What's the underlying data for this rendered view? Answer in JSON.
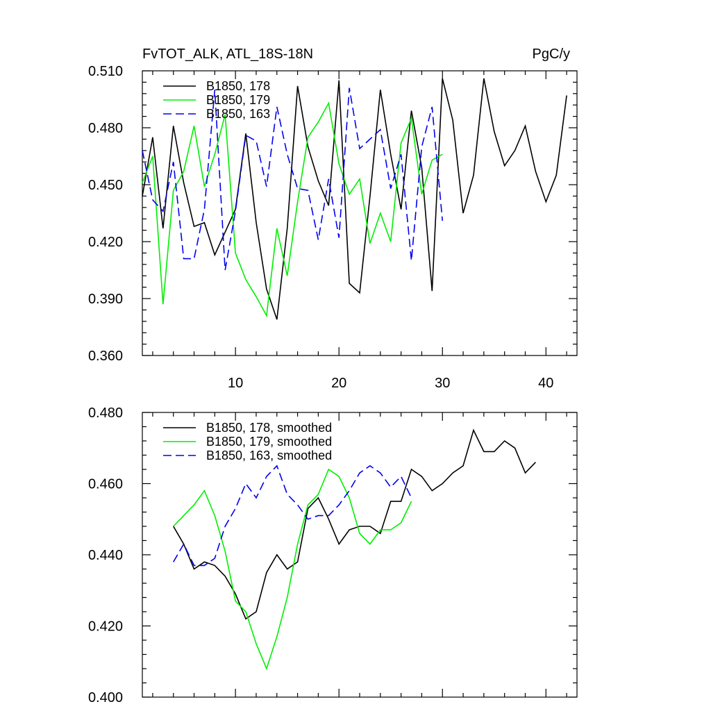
{
  "chart_data": [
    {
      "type": "line",
      "title_left": "FvTOT_ALK, ATL_18S-18N",
      "title_right": "PgC/y",
      "xlim": [
        1,
        43
      ],
      "ylim": [
        0.36,
        0.51
      ],
      "yticks": [
        0.36,
        0.39,
        0.42,
        0.45,
        0.48,
        0.51
      ],
      "ytick_labels": [
        "0.360",
        "0.390",
        "0.420",
        "0.450",
        "0.480",
        "0.510"
      ],
      "xticks": [
        10,
        20,
        30,
        40
      ],
      "xtick_labels": [
        "10",
        "20",
        "30",
        "40"
      ],
      "show_x_labels": true,
      "legend_position": "top-left",
      "series": [
        {
          "name": "B1850, 178",
          "color": "#000000",
          "dash": "solid",
          "x": [
            1,
            2,
            3,
            4,
            5,
            6,
            7,
            8,
            9,
            10,
            11,
            12,
            13,
            14,
            15,
            16,
            17,
            18,
            19,
            20,
            21,
            22,
            23,
            24,
            25,
            26,
            27,
            28,
            29,
            30,
            31,
            32,
            33,
            34,
            35,
            36,
            37,
            38,
            39,
            40,
            41,
            42
          ],
          "y": [
            0.444,
            0.475,
            0.427,
            0.481,
            0.451,
            0.428,
            0.43,
            0.413,
            0.425,
            0.437,
            0.477,
            0.43,
            0.395,
            0.379,
            0.427,
            0.502,
            0.47,
            0.452,
            0.439,
            0.505,
            0.398,
            0.393,
            0.444,
            0.5,
            0.466,
            0.437,
            0.489,
            0.459,
            0.394,
            0.506,
            0.484,
            0.435,
            0.455,
            0.506,
            0.478,
            0.46,
            0.468,
            0.481,
            0.457,
            0.441,
            0.455,
            0.497
          ]
        },
        {
          "name": "B1850, 179",
          "color": "#00ee00",
          "dash": "solid",
          "x": [
            1,
            2,
            3,
            4,
            5,
            6,
            7,
            8,
            9,
            10,
            11,
            12,
            13,
            14,
            15,
            16,
            17,
            18,
            19,
            20,
            21,
            22,
            23,
            24,
            25,
            26,
            27,
            28,
            29,
            30
          ],
          "y": [
            0.451,
            0.465,
            0.387,
            0.447,
            0.457,
            0.481,
            0.449,
            0.466,
            0.487,
            0.414,
            0.4,
            0.391,
            0.381,
            0.427,
            0.402,
            0.441,
            0.475,
            0.483,
            0.493,
            0.461,
            0.445,
            0.453,
            0.419,
            0.435,
            0.42,
            0.472,
            0.485,
            0.445,
            0.463,
            0.466
          ]
        },
        {
          "name": "B1850, 163",
          "color": "#0000ee",
          "dash": "dashed",
          "x": [
            1,
            2,
            3,
            4,
            5,
            6,
            7,
            8,
            9,
            10,
            11,
            12,
            13,
            14,
            15,
            16,
            17,
            18,
            19,
            20,
            21,
            22,
            23,
            24,
            25,
            26,
            27,
            28,
            29,
            30
          ],
          "y": [
            0.468,
            0.442,
            0.436,
            0.462,
            0.411,
            0.411,
            0.437,
            0.5,
            0.405,
            0.436,
            0.476,
            0.473,
            0.449,
            0.491,
            0.466,
            0.448,
            0.447,
            0.421,
            0.453,
            0.422,
            0.501,
            0.469,
            0.474,
            0.479,
            0.448,
            0.466,
            0.41,
            0.47,
            0.491,
            0.431
          ]
        }
      ]
    },
    {
      "type": "line",
      "xlim": [
        1,
        43
      ],
      "ylim": [
        0.4,
        0.48
      ],
      "yticks": [
        0.4,
        0.42,
        0.44,
        0.46,
        0.48
      ],
      "ytick_labels": [
        "0.400",
        "0.420",
        "0.440",
        "0.460",
        "0.480"
      ],
      "xticks": [
        10,
        20,
        30,
        40
      ],
      "show_x_labels": false,
      "legend_position": "top-left",
      "series": [
        {
          "name": "B1850, 178, smoothed",
          "color": "#000000",
          "dash": "solid",
          "x": [
            4,
            5,
            6,
            7,
            8,
            9,
            10,
            11,
            12,
            13,
            14,
            15,
            16,
            17,
            18,
            19,
            20,
            21,
            22,
            23,
            24,
            25,
            26,
            27,
            28,
            29,
            30,
            31,
            32,
            33,
            34,
            35,
            36,
            37,
            38,
            39
          ],
          "y": [
            0.448,
            0.443,
            0.436,
            0.438,
            0.437,
            0.434,
            0.429,
            0.422,
            0.424,
            0.435,
            0.44,
            0.436,
            0.438,
            0.453,
            0.456,
            0.45,
            0.443,
            0.447,
            0.448,
            0.448,
            0.446,
            0.455,
            0.455,
            0.464,
            0.462,
            0.458,
            0.46,
            0.463,
            0.465,
            0.475,
            0.469,
            0.469,
            0.472,
            0.47,
            0.463,
            0.466
          ]
        },
        {
          "name": "B1850, 179, smoothed",
          "color": "#00ee00",
          "dash": "solid",
          "x": [
            4,
            5,
            6,
            7,
            8,
            9,
            10,
            11,
            12,
            13,
            14,
            15,
            16,
            17,
            18,
            19,
            20,
            21,
            22,
            23,
            24,
            25,
            26,
            27
          ],
          "y": [
            0.448,
            0.451,
            0.454,
            0.458,
            0.451,
            0.441,
            0.427,
            0.424,
            0.415,
            0.408,
            0.417,
            0.428,
            0.443,
            0.454,
            0.457,
            0.464,
            0.462,
            0.456,
            0.446,
            0.443,
            0.447,
            0.447,
            0.449,
            0.455
          ]
        },
        {
          "name": "B1850, 163, smoothed",
          "color": "#0000ee",
          "dash": "dashed",
          "x": [
            4,
            5,
            6,
            7,
            8,
            9,
            10,
            11,
            12,
            13,
            14,
            15,
            16,
            17,
            18,
            19,
            20,
            21,
            22,
            23,
            24,
            25,
            26,
            27
          ],
          "y": [
            0.438,
            0.443,
            0.437,
            0.437,
            0.439,
            0.448,
            0.453,
            0.46,
            0.456,
            0.462,
            0.465,
            0.457,
            0.454,
            0.45,
            0.451,
            0.451,
            0.454,
            0.458,
            0.463,
            0.465,
            0.463,
            0.459,
            0.462,
            0.456
          ]
        }
      ]
    }
  ]
}
